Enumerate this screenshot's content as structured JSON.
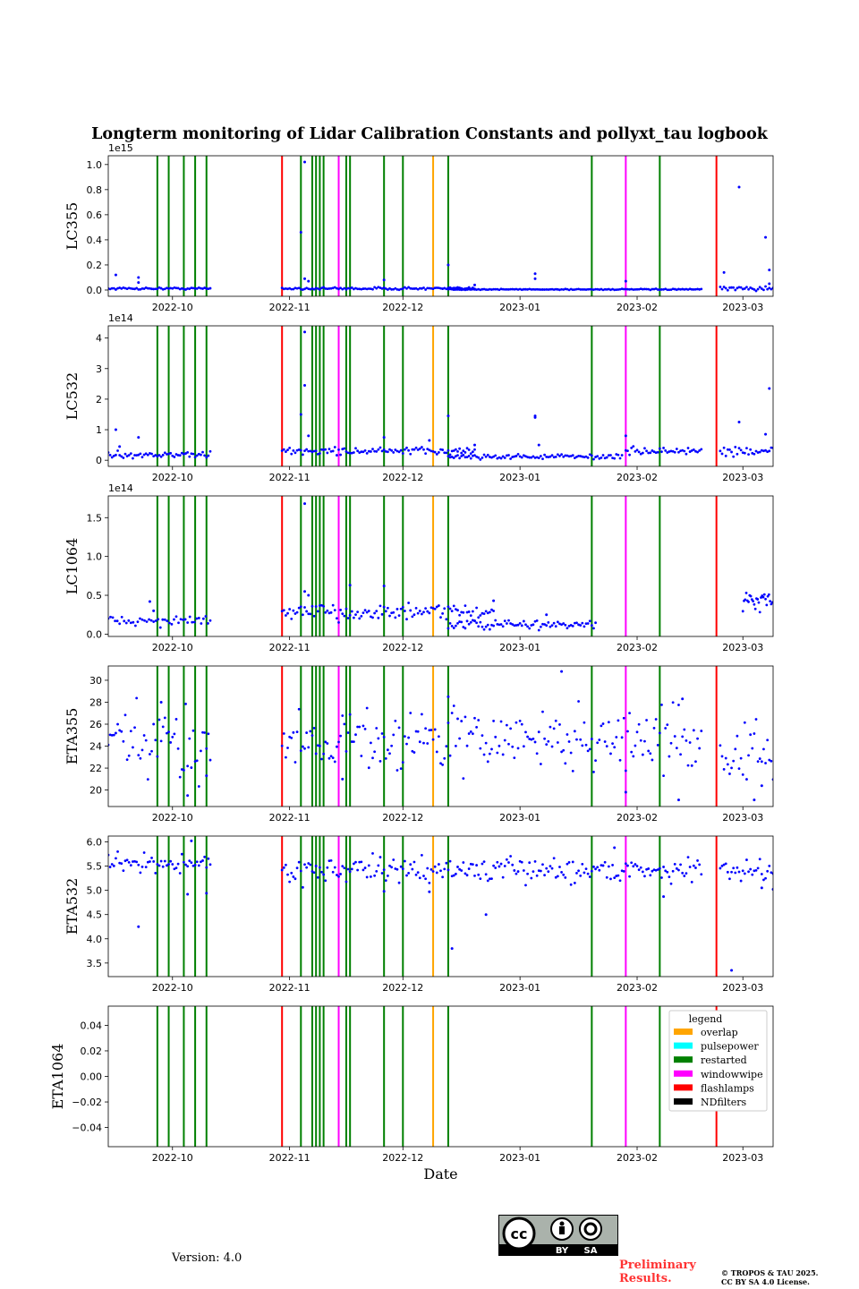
{
  "title": "Longterm monitoring of Lidar Calibration Constants and pollyxt_tau logbook",
  "version": "Version: 4.0",
  "preliminary": [
    "Preliminary",
    "Results."
  ],
  "copyright": [
    "© TROPOS & TAU 2025.",
    "CC BY SA 4.0 License."
  ],
  "cc_badge": {
    "cc": "cc",
    "by": "BY",
    "sa": "SA"
  },
  "colors": {
    "data": "#0000ff",
    "overlap": "#ffa500",
    "pulsepower": "#00ffff",
    "restarted": "#008000",
    "windowwipe": "#ff00ff",
    "flashlamps": "#ff0000",
    "NDfilters": "#000000"
  },
  "chart_data": {
    "type": "scatter",
    "xlabel": "Date",
    "x_range": [
      "2022-09-14",
      "2023-03-09"
    ],
    "x_ticks": [
      "2022-10",
      "2022-11",
      "2022-12",
      "2023-01",
      "2023-02",
      "2023-03"
    ],
    "events": [
      {
        "type": "restarted",
        "dates": [
          "2022-09-27",
          "2022-09-30",
          "2022-10-04",
          "2022-10-07",
          "2022-10-10",
          "2022-11-04",
          "2022-11-07",
          "2022-11-08",
          "2022-11-09",
          "2022-11-10",
          "2022-11-16",
          "2022-11-17",
          "2022-11-26",
          "2022-12-01",
          "2022-12-13",
          "2023-01-20",
          "2023-02-07"
        ]
      },
      {
        "type": "flashlamps",
        "dates": [
          "2022-10-30",
          "2023-02-22"
        ]
      },
      {
        "type": "windowwipe",
        "dates": [
          "2022-11-14",
          "2023-01-29"
        ]
      },
      {
        "type": "overlap",
        "dates": [
          "2022-12-09"
        ]
      }
    ],
    "legend": {
      "title": "legend",
      "position": "upper-right",
      "entries": [
        "overlap",
        "pulsepower",
        "restarted",
        "windowwipe",
        "flashlamps",
        "NDfilters"
      ]
    },
    "panels": [
      {
        "ylabel": "LC355",
        "ylim": [
          -0.05,
          1.07
        ],
        "yticks": [
          "0.0",
          "0.2",
          "0.4",
          "0.6",
          "0.8",
          "1.0"
        ],
        "ytick_values": [
          0,
          0.2,
          0.4,
          0.6,
          0.8,
          1.0
        ],
        "offset": "1e15",
        "segments": [
          {
            "start": "2022-09-14",
            "end": "2022-10-11",
            "level": 0.012,
            "noise": 0.004,
            "step": 0.5,
            "outliers": [
              [
                "2022-09-16",
                0.12
              ],
              [
                "2022-09-22",
                0.1
              ],
              [
                "2022-09-22",
                0.06
              ]
            ]
          },
          {
            "start": "2022-10-30",
            "end": "2022-12-20",
            "level": 0.012,
            "noise": 0.005,
            "step": 0.5,
            "outliers": [
              [
                "2022-11-04",
                0.46
              ],
              [
                "2022-11-05",
                1.02
              ],
              [
                "2022-11-05",
                0.09
              ],
              [
                "2022-11-06",
                0.07
              ],
              [
                "2022-11-26",
                0.08
              ],
              [
                "2022-12-13",
                0.2
              ]
            ]
          },
          {
            "start": "2022-12-13",
            "end": "2023-02-18",
            "level": 0.005,
            "noise": 0.002,
            "step": 0.5,
            "outliers": [
              [
                "2023-01-05",
                0.13
              ],
              [
                "2023-01-05",
                0.09
              ],
              [
                "2023-01-29",
                0.07
              ],
              [
                "2022-12-20",
                0.04
              ]
            ]
          },
          {
            "start": "2023-02-23",
            "end": "2023-03-09",
            "level": 0.012,
            "noise": 0.008,
            "step": 0.5,
            "outliers": [
              [
                "2023-02-24",
                0.14
              ],
              [
                "2023-02-28",
                0.82
              ],
              [
                "2023-03-07",
                0.42
              ],
              [
                "2023-03-08",
                0.16
              ],
              [
                "2023-03-08",
                0.05
              ]
            ]
          }
        ]
      },
      {
        "ylabel": "LC532",
        "ylim": [
          -0.2,
          4.4
        ],
        "yticks": [
          "0",
          "1",
          "2",
          "3",
          "4"
        ],
        "ytick_values": [
          0,
          1,
          2,
          3,
          4
        ],
        "offset": "1e14",
        "segments": [
          {
            "start": "2022-09-14",
            "end": "2022-10-11",
            "level": 0.18,
            "noise": 0.05,
            "step": 0.5,
            "outliers": [
              [
                "2022-09-16",
                1.0
              ],
              [
                "2022-09-17",
                0.45
              ],
              [
                "2022-09-22",
                0.75
              ]
            ]
          },
          {
            "start": "2022-10-30",
            "end": "2022-12-20",
            "level": 0.3,
            "noise": 0.06,
            "step": 0.5,
            "outliers": [
              [
                "2022-11-04",
                1.5
              ],
              [
                "2022-11-05",
                2.45
              ],
              [
                "2022-11-05",
                4.2
              ],
              [
                "2022-11-06",
                0.8
              ],
              [
                "2022-11-26",
                0.75
              ],
              [
                "2022-12-08",
                0.65
              ],
              [
                "2022-12-13",
                1.45
              ]
            ]
          },
          {
            "start": "2022-12-13",
            "end": "2023-01-28",
            "level": 0.12,
            "noise": 0.04,
            "step": 0.5,
            "outliers": [
              [
                "2023-01-05",
                1.4
              ],
              [
                "2023-01-05",
                1.45
              ],
              [
                "2022-12-20",
                0.5
              ],
              [
                "2023-01-06",
                0.5
              ]
            ]
          },
          {
            "start": "2023-01-29",
            "end": "2023-02-18",
            "level": 0.3,
            "noise": 0.06,
            "step": 0.5,
            "outliers": [
              [
                "2023-01-29",
                0.8
              ]
            ]
          },
          {
            "start": "2023-02-23",
            "end": "2023-03-09",
            "level": 0.3,
            "noise": 0.08,
            "step": 0.5,
            "outliers": [
              [
                "2023-02-28",
                1.25
              ],
              [
                "2023-03-08",
                2.35
              ],
              [
                "2023-03-07",
                0.85
              ]
            ]
          }
        ]
      },
      {
        "ylabel": "LC1064",
        "ylim": [
          -0.03,
          1.78
        ],
        "yticks": [
          "0.0",
          "0.5",
          "1.0",
          "1.5"
        ],
        "ytick_values": [
          0,
          0.5,
          1.0,
          1.5
        ],
        "offset": "1e14",
        "segments": [
          {
            "start": "2022-09-14",
            "end": "2022-10-11",
            "level": 0.17,
            "noise": 0.03,
            "step": 0.6,
            "outliers": [
              [
                "2022-09-25",
                0.42
              ],
              [
                "2022-09-26",
                0.3
              ]
            ]
          },
          {
            "start": "2022-10-30",
            "end": "2022-12-25",
            "level": 0.28,
            "noise": 0.05,
            "step": 0.5,
            "outliers": [
              [
                "2022-11-05",
                1.68
              ],
              [
                "2022-11-05",
                0.55
              ],
              [
                "2022-11-06",
                0.5
              ],
              [
                "2022-11-17",
                0.63
              ],
              [
                "2022-11-26",
                0.62
              ]
            ]
          },
          {
            "start": "2022-12-13",
            "end": "2023-01-21",
            "level": 0.12,
            "noise": 0.03,
            "step": 0.5,
            "outliers": [
              [
                "2022-12-25",
                0.43
              ],
              [
                "2023-01-08",
                0.25
              ]
            ]
          },
          {
            "start": "2023-03-01",
            "end": "2023-03-09",
            "level": 0.42,
            "noise": 0.07,
            "step": 0.3,
            "outliers": []
          }
        ]
      },
      {
        "ylabel": "ETA355",
        "ylim": [
          18.5,
          31.3
        ],
        "yticks": [
          "20",
          "22",
          "24",
          "26",
          "28",
          "30"
        ],
        "ytick_values": [
          20,
          22,
          24,
          26,
          28,
          30
        ],
        "segments": [
          {
            "start": "2022-09-14",
            "end": "2022-10-11",
            "level": 24.2,
            "noise": 1.6,
            "step": 0.5,
            "outliers": [
              [
                "2022-09-28",
                28.0
              ],
              [
                "2022-10-05",
                19.5
              ],
              [
                "2022-10-10",
                21.3
              ]
            ]
          },
          {
            "start": "2022-10-30",
            "end": "2023-02-18",
            "level": 24.6,
            "noise": 1.4,
            "step": 0.5,
            "outliers": [
              [
                "2022-11-15",
                21.0
              ],
              [
                "2022-12-13",
                28.5
              ],
              [
                "2023-01-12",
                30.8
              ],
              [
                "2023-01-29",
                19.8
              ],
              [
                "2023-02-12",
                19.1
              ],
              [
                "2023-02-13",
                28.3
              ]
            ]
          },
          {
            "start": "2023-02-23",
            "end": "2023-03-09",
            "level": 23.2,
            "noise": 1.5,
            "step": 0.5,
            "outliers": [
              [
                "2023-03-04",
                19.1
              ],
              [
                "2023-03-06",
                20.4
              ]
            ]
          }
        ]
      },
      {
        "ylabel": "ETA532",
        "ylim": [
          3.22,
          6.12
        ],
        "yticks": [
          "3.5",
          "4.0",
          "4.5",
          "5.0",
          "5.5",
          "6.0"
        ],
        "ytick_values": [
          3.5,
          4.0,
          4.5,
          5.0,
          5.5,
          6.0
        ],
        "segments": [
          {
            "start": "2022-09-14",
            "end": "2022-10-11",
            "level": 5.55,
            "noise": 0.1,
            "step": 0.5,
            "outliers": [
              [
                "2022-09-22",
                4.25
              ],
              [
                "2022-10-05",
                4.92
              ],
              [
                "2022-10-10",
                4.94
              ],
              [
                "2022-10-06",
                6.02
              ]
            ]
          },
          {
            "start": "2022-10-30",
            "end": "2023-02-18",
            "level": 5.42,
            "noise": 0.12,
            "step": 0.5,
            "outliers": [
              [
                "2022-11-26",
                4.98
              ],
              [
                "2022-12-08",
                4.97
              ],
              [
                "2022-12-14",
                3.8
              ],
              [
                "2022-12-23",
                4.5
              ],
              [
                "2023-02-08",
                4.87
              ],
              [
                "2023-01-26",
                5.88
              ]
            ]
          },
          {
            "start": "2023-02-23",
            "end": "2023-03-09",
            "level": 5.42,
            "noise": 0.1,
            "step": 0.5,
            "outliers": [
              [
                "2023-02-26",
                3.35
              ],
              [
                "2023-03-09",
                5.02
              ],
              [
                "2023-03-06",
                5.05
              ]
            ]
          }
        ]
      },
      {
        "ylabel": "ETA1064",
        "ylim": [
          -0.055,
          0.055
        ],
        "yticks": [
          "−0.04",
          "−0.02",
          "0.00",
          "0.02",
          "0.04"
        ],
        "ytick_values": [
          -0.04,
          -0.02,
          0,
          0.02,
          0.04
        ],
        "segments": []
      }
    ]
  }
}
